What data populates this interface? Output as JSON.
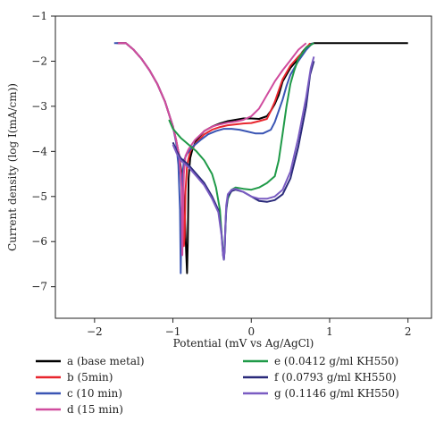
{
  "chart_data": {
    "type": "line",
    "title": "",
    "xlabel": "Potential (mV vs Ag/AgCl)",
    "ylabel": "Current density (log I(mA/cm))",
    "xlim": [
      -2.5,
      2.3
    ],
    "ylim": [
      -7.7,
      -1.0
    ],
    "x_ticks": [
      -2,
      -1,
      0,
      1,
      2
    ],
    "x_tick_labels": [
      "−2",
      "−1",
      "0",
      "1",
      "2"
    ],
    "y_ticks": [
      -1,
      -2,
      -3,
      -4,
      -5,
      -6,
      -7
    ],
    "y_tick_labels": [
      "−1",
      "−2",
      "−3",
      "−4",
      "−5",
      "−6",
      "−7"
    ],
    "grid": false,
    "legend_position": "bottom",
    "series": [
      {
        "name": "a (base metal)",
        "color": "#000000",
        "x": [
          -1.7,
          -1.6,
          -1.5,
          -1.4,
          -1.3,
          -1.2,
          -1.1,
          -1.0,
          -0.96,
          -0.92,
          -0.88,
          -0.85,
          -0.83,
          -0.82,
          -0.81,
          -0.8,
          -0.78,
          -0.75,
          -0.7,
          -0.6,
          -0.5,
          -0.4,
          -0.3,
          -0.2,
          -0.1,
          0.0,
          0.1,
          0.2,
          0.25,
          0.3,
          0.35,
          0.4,
          0.5,
          0.6,
          0.65,
          0.7,
          0.75,
          0.8,
          1.0,
          1.5,
          2.0
        ],
        "y": [
          -1.6,
          -1.6,
          -1.75,
          -1.95,
          -2.2,
          -2.5,
          -2.9,
          -3.45,
          -3.75,
          -4.1,
          -4.6,
          -5.3,
          -6.3,
          -6.7,
          -6.0,
          -4.6,
          -4.15,
          -3.95,
          -3.75,
          -3.55,
          -3.45,
          -3.38,
          -3.33,
          -3.3,
          -3.27,
          -3.27,
          -3.28,
          -3.22,
          -3.1,
          -2.95,
          -2.75,
          -2.45,
          -2.15,
          -1.95,
          -1.8,
          -1.7,
          -1.62,
          -1.6,
          -1.6,
          -1.6,
          -1.6
        ]
      },
      {
        "name": "b (5min)",
        "color": "#e8262e",
        "x": [
          -1.72,
          -1.6,
          -1.5,
          -1.4,
          -1.3,
          -1.2,
          -1.1,
          -1.0,
          -0.96,
          -0.92,
          -0.89,
          -0.87,
          -0.86,
          -0.85,
          -0.84,
          -0.82,
          -0.78,
          -0.7,
          -0.6,
          -0.5,
          -0.4,
          -0.3,
          -0.2,
          -0.1,
          0.0,
          0.1,
          0.2,
          0.25,
          0.3,
          0.35,
          0.4,
          0.5,
          0.6,
          0.7,
          0.75
        ],
        "y": [
          -1.6,
          -1.6,
          -1.75,
          -1.95,
          -2.2,
          -2.5,
          -2.9,
          -3.45,
          -3.75,
          -4.1,
          -4.6,
          -5.3,
          -6.1,
          -5.9,
          -4.9,
          -4.3,
          -4.0,
          -3.8,
          -3.62,
          -3.52,
          -3.46,
          -3.42,
          -3.4,
          -3.38,
          -3.37,
          -3.33,
          -3.28,
          -3.1,
          -2.9,
          -2.65,
          -2.4,
          -2.1,
          -1.9,
          -1.72,
          -1.6
        ]
      },
      {
        "name": "c (10 min)",
        "color": "#3a55b4",
        "x": [
          -1.75,
          -1.6,
          -1.5,
          -1.4,
          -1.3,
          -1.2,
          -1.1,
          -1.0,
          -0.96,
          -0.93,
          -0.91,
          -0.9,
          -0.89,
          -0.88,
          -0.86,
          -0.82,
          -0.75,
          -0.65,
          -0.55,
          -0.45,
          -0.35,
          -0.25,
          -0.15,
          -0.05,
          0.05,
          0.15,
          0.25,
          0.3,
          0.35,
          0.4,
          0.45,
          0.5,
          0.6,
          0.7,
          0.78
        ],
        "y": [
          -1.6,
          -1.6,
          -1.75,
          -1.95,
          -2.2,
          -2.5,
          -2.9,
          -3.45,
          -3.8,
          -4.3,
          -5.3,
          -6.7,
          -5.5,
          -4.6,
          -4.2,
          -4.05,
          -3.9,
          -3.75,
          -3.62,
          -3.55,
          -3.5,
          -3.5,
          -3.52,
          -3.56,
          -3.6,
          -3.6,
          -3.52,
          -3.35,
          -3.1,
          -2.85,
          -2.55,
          -2.3,
          -2.0,
          -1.75,
          -1.6
        ]
      },
      {
        "name": "d (15 min)",
        "color": "#d04c9e",
        "x": [
          -1.7,
          -1.6,
          -1.5,
          -1.4,
          -1.3,
          -1.2,
          -1.1,
          -1.0,
          -0.96,
          -0.92,
          -0.89,
          -0.88,
          -0.87,
          -0.86,
          -0.84,
          -0.8,
          -0.72,
          -0.6,
          -0.5,
          -0.4,
          -0.3,
          -0.2,
          -0.1,
          0.0,
          0.1,
          0.15,
          0.2,
          0.25,
          0.3,
          0.4,
          0.5,
          0.6,
          0.7
        ],
        "y": [
          -1.6,
          -1.6,
          -1.75,
          -1.95,
          -2.2,
          -2.5,
          -2.9,
          -3.45,
          -3.75,
          -4.1,
          -4.8,
          -6.3,
          -5.3,
          -4.5,
          -4.1,
          -3.95,
          -3.75,
          -3.55,
          -3.45,
          -3.4,
          -3.36,
          -3.34,
          -3.3,
          -3.22,
          -3.05,
          -2.9,
          -2.75,
          -2.6,
          -2.45,
          -2.2,
          -1.98,
          -1.75,
          -1.6
        ]
      },
      {
        "name": "e (0.0412 g/ml KH550)",
        "color": "#1f9a48",
        "x": [
          -1.05,
          -1.0,
          -0.9,
          -0.8,
          -0.7,
          -0.6,
          -0.5,
          -0.45,
          -0.4,
          -0.38,
          -0.36,
          -0.35,
          -0.34,
          -0.33,
          -0.32,
          -0.3,
          -0.25,
          -0.2,
          -0.1,
          0.0,
          0.1,
          0.2,
          0.3,
          0.35,
          0.4,
          0.45,
          0.5,
          0.55,
          0.6,
          0.7,
          0.8
        ],
        "y": [
          -3.3,
          -3.5,
          -3.7,
          -3.85,
          -4.0,
          -4.2,
          -4.5,
          -4.8,
          -5.3,
          -5.8,
          -6.2,
          -6.4,
          -6.1,
          -5.7,
          -5.3,
          -5.05,
          -4.85,
          -4.8,
          -4.83,
          -4.85,
          -4.8,
          -4.7,
          -4.55,
          -4.2,
          -3.6,
          -3.0,
          -2.5,
          -2.2,
          -1.95,
          -1.7,
          -1.6
        ]
      },
      {
        "name": "f (0.0793 g/ml KH550)",
        "color": "#2a2a7a",
        "x": [
          -1.0,
          -0.95,
          -0.9,
          -0.8,
          -0.7,
          -0.6,
          -0.5,
          -0.42,
          -0.38,
          -0.36,
          -0.35,
          -0.34,
          -0.33,
          -0.32,
          -0.3,
          -0.25,
          -0.2,
          -0.1,
          0.0,
          0.1,
          0.2,
          0.3,
          0.4,
          0.5,
          0.6,
          0.7,
          0.75,
          0.8
        ],
        "y": [
          -3.8,
          -4.0,
          -4.15,
          -4.3,
          -4.5,
          -4.7,
          -5.0,
          -5.3,
          -5.8,
          -6.3,
          -6.4,
          -6.2,
          -5.7,
          -5.3,
          -5.0,
          -4.88,
          -4.85,
          -4.9,
          -5.0,
          -5.1,
          -5.12,
          -5.08,
          -4.95,
          -4.6,
          -3.9,
          -3.0,
          -2.3,
          -2.0
        ]
      },
      {
        "name": "g (0.1146 g/ml KH550)",
        "color": "#7a5cc2",
        "x": [
          -1.0,
          -0.95,
          -0.9,
          -0.8,
          -0.7,
          -0.6,
          -0.5,
          -0.42,
          -0.38,
          -0.36,
          -0.35,
          -0.34,
          -0.33,
          -0.32,
          -0.3,
          -0.25,
          -0.2,
          -0.1,
          0.0,
          0.1,
          0.2,
          0.3,
          0.4,
          0.5,
          0.6,
          0.7,
          0.76,
          0.8
        ],
        "y": [
          -3.85,
          -4.05,
          -4.2,
          -4.35,
          -4.55,
          -4.75,
          -5.05,
          -5.35,
          -5.85,
          -6.3,
          -6.4,
          -6.15,
          -5.65,
          -5.2,
          -4.95,
          -4.85,
          -4.83,
          -4.9,
          -5.0,
          -5.05,
          -5.05,
          -5.0,
          -4.85,
          -4.45,
          -3.7,
          -2.8,
          -2.15,
          -1.9
        ]
      }
    ]
  }
}
